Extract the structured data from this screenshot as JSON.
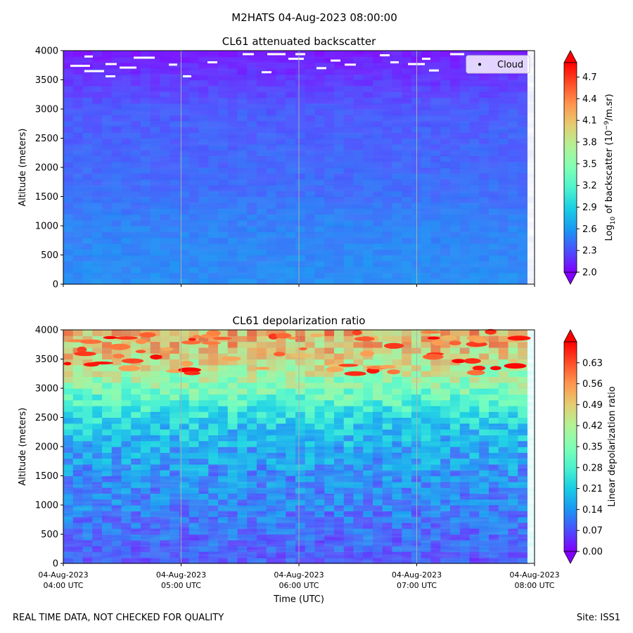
{
  "figure": {
    "suptitle": "M2HATS 04-Aug-2023 08:00:00",
    "footer_left": "REAL TIME DATA, NOT CHECKED FOR QUALITY",
    "footer_right": "Site: ISS1"
  },
  "chart_data": [
    {
      "type": "heatmap",
      "title": "CL61 attenuated backscatter",
      "ylabel": "Altitude (meters)",
      "xlabel": "",
      "ylim": [
        0,
        4000
      ],
      "yticks": [
        0,
        500,
        1000,
        1500,
        2000,
        2500,
        3000,
        3500,
        4000
      ],
      "x_range_hours_utc": [
        4,
        8
      ],
      "colorbar": {
        "label_prefix": "Log",
        "label_sub": "10",
        "label_mid": " of backscatter (10",
        "label_sup": "−9",
        "label_suffix": "/m.sr)",
        "range": [
          2.0,
          4.9
        ],
        "ticks": [
          "2.0",
          "2.3",
          "2.6",
          "2.9",
          "3.2",
          "3.5",
          "3.8",
          "4.1",
          "4.4",
          "4.7"
        ],
        "colormap": "rainbow",
        "extend": "both"
      },
      "legend": {
        "label": "Cloud",
        "location": "upper-right"
      },
      "profile": [
        {
          "alt": 0,
          "value": 2.55
        },
        {
          "alt": 500,
          "value": 2.52
        },
        {
          "alt": 1000,
          "value": 2.5
        },
        {
          "alt": 1500,
          "value": 2.42
        },
        {
          "alt": 2000,
          "value": 2.38
        },
        {
          "alt": 2500,
          "value": 2.35
        },
        {
          "alt": 3000,
          "value": 2.32
        },
        {
          "alt": 3500,
          "value": 2.18
        },
        {
          "alt": 4000,
          "value": 2.05
        }
      ]
    },
    {
      "type": "heatmap",
      "title": "CL61 depolarization ratio",
      "ylabel": "Altitude (meters)",
      "xlabel": "Time (UTC)",
      "ylim": [
        0,
        4000
      ],
      "yticks": [
        0,
        500,
        1000,
        1500,
        2000,
        2500,
        3000,
        3500,
        4000
      ],
      "x_range_hours_utc": [
        4,
        8
      ],
      "xticks": [
        {
          "date": "04-Aug-2023",
          "time": "04:00 UTC"
        },
        {
          "date": "04-Aug-2023",
          "time": "05:00 UTC"
        },
        {
          "date": "04-Aug-2023",
          "time": "06:00 UTC"
        },
        {
          "date": "04-Aug-2023",
          "time": "07:00 UTC"
        },
        {
          "date": "04-Aug-2023",
          "time": "08:00 UTC"
        }
      ],
      "colorbar": {
        "label": "Linear depolarization ratio",
        "range": [
          0.0,
          0.7
        ],
        "ticks": [
          "0.00",
          "0.07",
          "0.14",
          "0.21",
          "0.28",
          "0.35",
          "0.42",
          "0.49",
          "0.56",
          "0.63"
        ],
        "colormap": "rainbow",
        "extend": "both"
      },
      "profile": [
        {
          "alt": 0,
          "value": 0.06
        },
        {
          "alt": 500,
          "value": 0.08
        },
        {
          "alt": 1000,
          "value": 0.1
        },
        {
          "alt": 1500,
          "value": 0.12
        },
        {
          "alt": 2000,
          "value": 0.16
        },
        {
          "alt": 2500,
          "value": 0.22
        },
        {
          "alt": 3000,
          "value": 0.36
        },
        {
          "alt": 3500,
          "value": 0.48
        },
        {
          "alt": 4000,
          "value": 0.55
        }
      ]
    }
  ]
}
